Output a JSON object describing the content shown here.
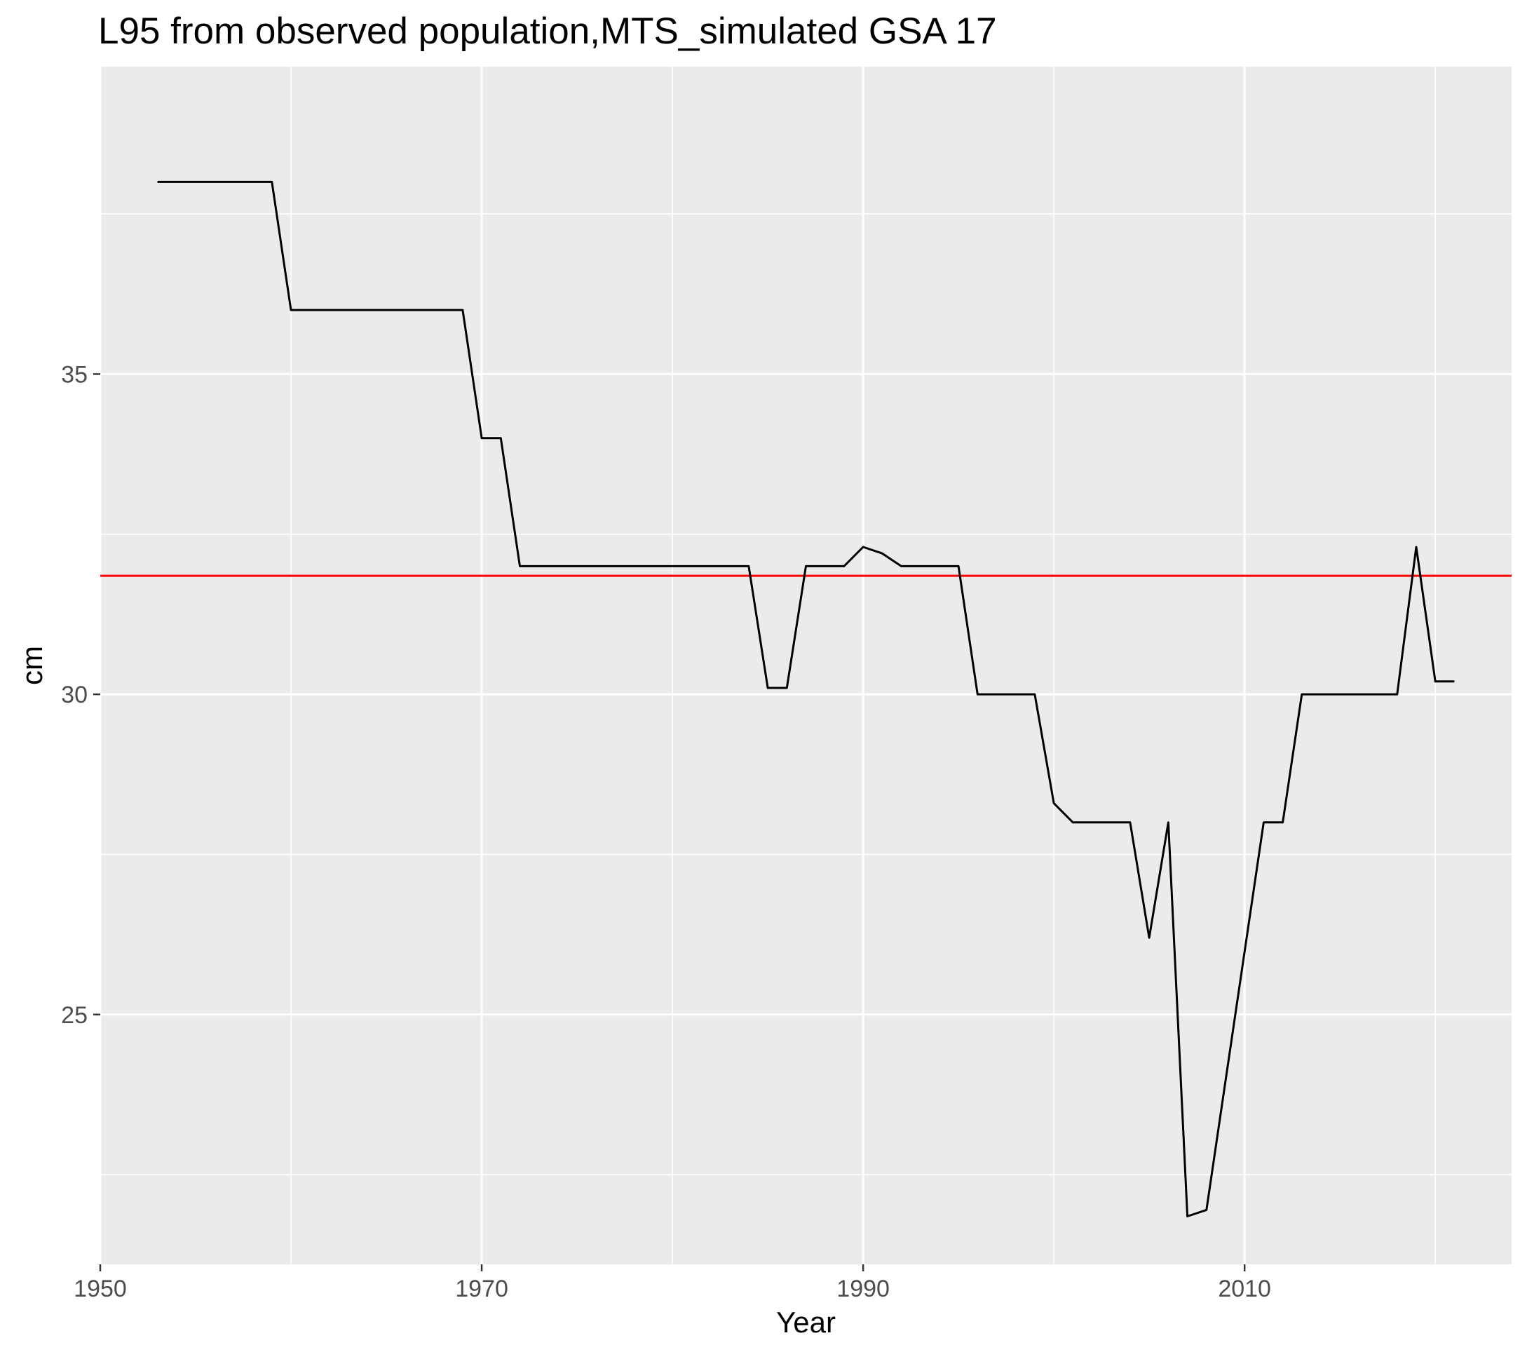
{
  "chart_data": {
    "type": "line",
    "title": "L95 from observed population,MTS_simulated GSA 17",
    "xlabel": "Year",
    "ylabel": "cm",
    "xlim": [
      1950,
      2024
    ],
    "ylim": [
      21.1,
      39.8
    ],
    "x_ticks": [
      1950,
      1970,
      1990,
      2010
    ],
    "y_ticks": [
      25,
      30,
      35
    ],
    "grid": true,
    "legend": "none",
    "reference_line": {
      "y": 31.85,
      "color": "#ff0000"
    },
    "series": [
      {
        "color": "#000000",
        "x": [
          1953,
          1959,
          1960,
          1969,
          1970,
          1971,
          1972,
          1984,
          1985,
          1986,
          1987,
          1989,
          1990,
          1991,
          1992,
          1995,
          1996,
          1999,
          2000,
          2001,
          2004,
          2005,
          2006,
          2007,
          2008,
          2011,
          2012,
          2013,
          2018,
          2019,
          2020,
          2021
        ],
        "y": [
          38.0,
          38.0,
          36.0,
          36.0,
          34.0,
          34.0,
          32.0,
          32.0,
          30.1,
          30.1,
          32.0,
          32.0,
          32.3,
          32.2,
          32.0,
          32.0,
          30.0,
          30.0,
          28.3,
          28.0,
          28.0,
          26.2,
          28.0,
          21.85,
          21.95,
          28.0,
          28.0,
          30.0,
          30.0,
          32.3,
          30.2,
          30.2
        ]
      }
    ]
  },
  "colors": {
    "panel_bg": "#ebebeb",
    "grid": "#ffffff",
    "line": "#000000",
    "ref_line": "#ff0000"
  }
}
